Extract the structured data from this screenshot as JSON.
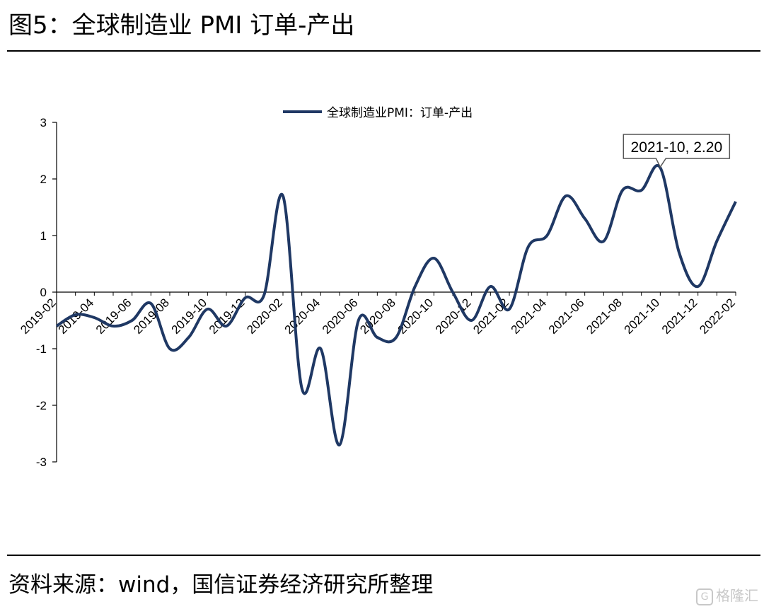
{
  "figure": {
    "title": "图5：全球制造业 PMI 订单-产出",
    "source": "资料来源：wind，国信证券经济研究所整理",
    "watermark": "格隆汇"
  },
  "chart_data": {
    "type": "line",
    "title": "",
    "xlabel": "",
    "ylabel": "",
    "ylim": [
      -3,
      3
    ],
    "yticks": [
      -3,
      -2,
      -1,
      0,
      1,
      2,
      3
    ],
    "grid": false,
    "legend_position": "top-center",
    "line_color": "#1f3864",
    "x": [
      "2019-02",
      "2019-03",
      "2019-04",
      "2019-05",
      "2019-06",
      "2019-07",
      "2019-08",
      "2019-09",
      "2019-10",
      "2019-11",
      "2019-12",
      "2020-01",
      "2020-02",
      "2020-03",
      "2020-04",
      "2020-05",
      "2020-06",
      "2020-07",
      "2020-08",
      "2020-09",
      "2020-10",
      "2020-11",
      "2020-12",
      "2021-01",
      "2021-02",
      "2021-03",
      "2021-04",
      "2021-05",
      "2021-06",
      "2021-07",
      "2021-08",
      "2021-09",
      "2021-10",
      "2021-11",
      "2021-12",
      "2022-01",
      "2022-02"
    ],
    "xtick_labels": [
      "2019-02",
      "2019-04",
      "2019-06",
      "2019-08",
      "2019-10",
      "2019-12",
      "2020-02",
      "2020-04",
      "2020-06",
      "2020-08",
      "2020-10",
      "2020-12",
      "2021-02",
      "2021-04",
      "2021-06",
      "2021-08",
      "2021-10",
      "2021-12",
      "2022-02"
    ],
    "series": [
      {
        "name": "全球制造业PMI：订单-产出",
        "values": [
          -0.6,
          -0.4,
          -0.45,
          -0.6,
          -0.5,
          -0.2,
          -1.0,
          -0.8,
          -0.3,
          -0.6,
          -0.1,
          -0.05,
          1.7,
          -1.7,
          -1.0,
          -2.7,
          -0.5,
          -0.8,
          -0.8,
          0.1,
          0.6,
          0.0,
          -0.5,
          0.1,
          -0.3,
          0.8,
          1.0,
          1.7,
          1.3,
          0.9,
          1.8,
          1.8,
          2.2,
          0.7,
          0.1,
          0.9,
          1.6
        ]
      }
    ],
    "annotations": [
      {
        "x": "2021-10",
        "y": 2.2,
        "text": "2021-10, 2.20"
      }
    ]
  }
}
